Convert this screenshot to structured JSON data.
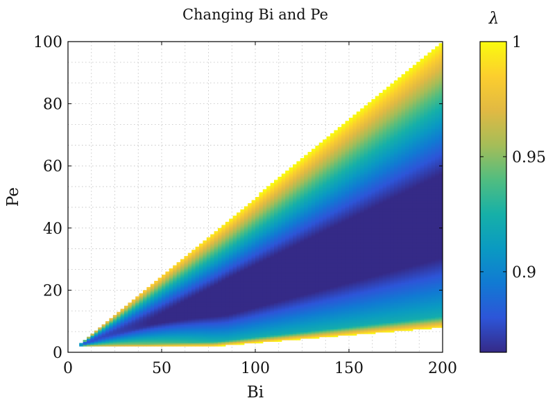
{
  "chart_data": {
    "type": "heatmap",
    "title": "Changing Bi and Pe",
    "xlabel": "Bi",
    "ylabel": "Pe",
    "xlim": [
      0,
      200
    ],
    "ylim": [
      0,
      100
    ],
    "xticks": [
      0,
      50,
      100,
      150,
      200
    ],
    "yticks": [
      0,
      20,
      40,
      60,
      80,
      100
    ],
    "grid": true,
    "colorbar": {
      "label": "λ",
      "range": [
        0.865,
        1.0
      ],
      "ticks": [
        0.9,
        0.95,
        1
      ],
      "tick_labels": [
        "0.9",
        "0.95",
        "1"
      ],
      "colormap": [
        "#352a87",
        "#2d55d8",
        "#117ad3",
        "#0a9ac2",
        "#16b0a8",
        "#51bd80",
        "#a5bd58",
        "#e1b943",
        "#fcce2e",
        "#f9fb0e"
      ]
    },
    "domain": {
      "vertices": [
        [
          5,
          2
        ],
        [
          200,
          100
        ],
        [
          200,
          8
        ],
        [
          78,
          2
        ]
      ],
      "note": "filled wedge between Pe = Bi/2 (upper edge) and Pe ≈ Bi/20 (lower edge)"
    },
    "samples": [
      {
        "Bi": 200,
        "Pe": 98,
        "lambda": 1.0
      },
      {
        "Bi": 200,
        "Pe": 85,
        "lambda": 0.98
      },
      {
        "Bi": 200,
        "Pe": 75,
        "lambda": 0.95
      },
      {
        "Bi": 200,
        "Pe": 60,
        "lambda": 0.92
      },
      {
        "Bi": 200,
        "Pe": 45,
        "lambda": 0.895
      },
      {
        "Bi": 200,
        "Pe": 25,
        "lambda": 0.87
      },
      {
        "Bi": 200,
        "Pe": 15,
        "lambda": 0.885
      },
      {
        "Bi": 200,
        "Pe": 11,
        "lambda": 0.94
      },
      {
        "Bi": 200,
        "Pe": 9,
        "lambda": 0.985
      },
      {
        "Bi": 100,
        "Pe": 48,
        "lambda": 0.995
      },
      {
        "Bi": 100,
        "Pe": 35,
        "lambda": 0.93
      },
      {
        "Bi": 100,
        "Pe": 20,
        "lambda": 0.89
      },
      {
        "Bi": 100,
        "Pe": 8,
        "lambda": 0.875
      },
      {
        "Bi": 100,
        "Pe": 4,
        "lambda": 0.93
      },
      {
        "Bi": 50,
        "Pe": 23,
        "lambda": 0.99
      },
      {
        "Bi": 50,
        "Pe": 10,
        "lambda": 0.9
      },
      {
        "Bi": 50,
        "Pe": 5,
        "lambda": 0.875
      },
      {
        "Bi": 30,
        "Pe": 3,
        "lambda": 0.875
      }
    ]
  }
}
